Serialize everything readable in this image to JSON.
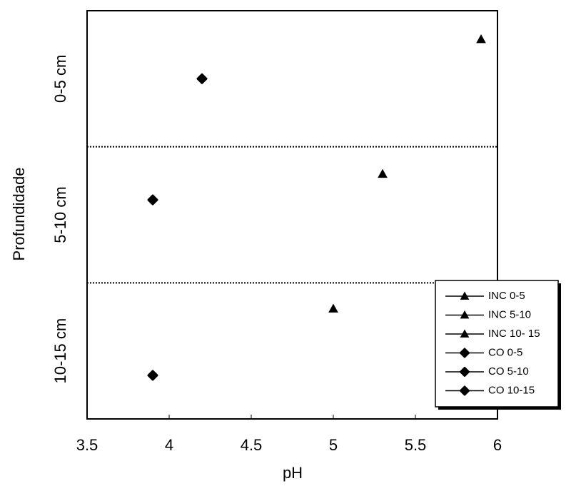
{
  "chart_data": {
    "type": "scatter",
    "x_label": "pH",
    "y_label": "Profundidade",
    "categories": [
      "0-5 cm",
      "5-10 cm",
      "10-15 cm"
    ],
    "xlim": [
      3.5,
      6
    ],
    "xticks": [
      3.5,
      4,
      4.5,
      5,
      5.5,
      6
    ],
    "legend": "bottom-right",
    "series": [
      {
        "name": "INC 0-5",
        "color": "#000000",
        "marker": "triangle",
        "values": [
          5.9,
          null,
          null
        ]
      },
      {
        "name": "INC 5-10",
        "color": "#000000",
        "marker": "triangle",
        "values": [
          null,
          5.3,
          null
        ]
      },
      {
        "name": "INC 10- 15",
        "color": "#000000",
        "marker": "triangle",
        "values": [
          null,
          null,
          5.0
        ]
      },
      {
        "name": "CO 0-5",
        "color": "#000000",
        "marker": "diamond",
        "values": [
          4.2,
          null,
          null
        ]
      },
      {
        "name": "CO 5-10",
        "color": "#000000",
        "marker": "diamond",
        "values": [
          null,
          3.9,
          null
        ]
      },
      {
        "name": "CO 10-15",
        "color": "#000000",
        "marker": "diamond",
        "values": [
          null,
          null,
          3.9
        ]
      }
    ]
  }
}
